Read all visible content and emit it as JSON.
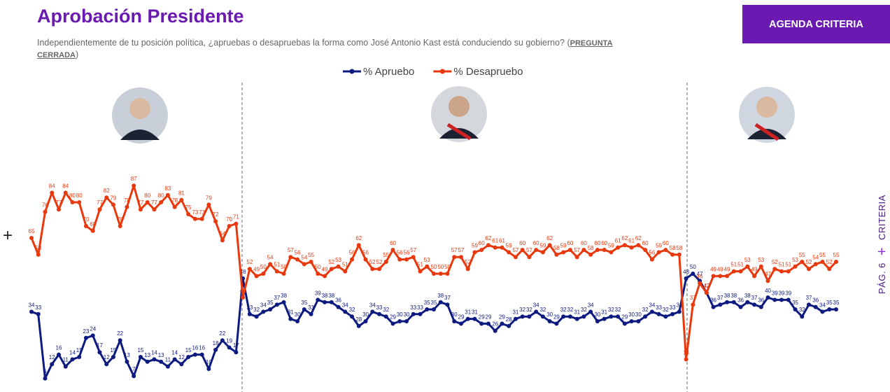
{
  "chart_data": {
    "type": "line",
    "title": "Aprobación Presidente",
    "subtitle": "Independientemente de tu posición política, ¿apruebas o desapruebas la forma como José Antonio Kast está conduciendo su gobierno?",
    "question_type": "PREGUNTA CERRADA",
    "button": "AGENDA CRITERIA",
    "page_label": "PÁG. 6",
    "brand": "CRITERIA",
    "ylim": [
      0,
      100
    ],
    "series": [
      {
        "name": "% Apruebo",
        "color": "#0d1a80",
        "values": [
          34,
          33,
          6,
          12,
          16,
          11,
          14,
          15,
          23,
          24,
          17,
          12,
          15,
          22,
          13,
          7,
          15,
          13,
          14,
          13,
          11,
          14,
          12,
          15,
          16,
          16,
          10,
          18,
          22,
          19,
          17,
          48,
          33,
          32,
          34,
          35,
          37,
          38,
          31,
          30,
          35,
          33,
          39,
          38,
          38,
          36,
          34,
          32,
          28,
          30,
          34,
          33,
          32,
          29,
          30,
          30,
          33,
          33,
          35,
          35,
          38,
          37,
          30,
          29,
          31,
          31,
          29,
          29,
          26,
          29,
          28,
          31,
          32,
          32,
          34,
          32,
          30,
          29,
          32,
          32,
          31,
          32,
          34,
          30,
          31,
          32,
          32,
          29,
          30,
          30,
          32,
          34,
          33,
          32,
          33,
          34,
          48,
          50,
          47,
          42,
          36,
          37,
          38,
          38,
          36,
          38,
          37,
          36,
          40,
          39,
          39,
          39,
          35,
          32,
          37,
          36,
          34,
          35,
          35
        ]
      },
      {
        "name": "% Desapruebo",
        "color": "#e8380d",
        "values": [
          65,
          58,
          76,
          84,
          77,
          84,
          80,
          80,
          70,
          68,
          77,
          82,
          79,
          70,
          78,
          87,
          77,
          80,
          77,
          80,
          83,
          78,
          81,
          75,
          73,
          73,
          79,
          72,
          64,
          70,
          71,
          40,
          52,
          49,
          50,
          54,
          51,
          50,
          57,
          56,
          54,
          55,
          50,
          49,
          52,
          53,
          51,
          56,
          62,
          56,
          52,
          52,
          55,
          60,
          56,
          56,
          57,
          51,
          53,
          50,
          50,
          50,
          57,
          57,
          52,
          59,
          60,
          62,
          61,
          61,
          59,
          57,
          60,
          57,
          60,
          59,
          62,
          58,
          59,
          60,
          57,
          60,
          58,
          60,
          60,
          59,
          61,
          62,
          61,
          62,
          60,
          56,
          59,
          60,
          58,
          58,
          14,
          37,
          46,
          42,
          49,
          49,
          49,
          51,
          51,
          53,
          49,
          53,
          47,
          52,
          51,
          51,
          53,
          55,
          52,
          54,
          55,
          52,
          55
        ]
      }
    ]
  }
}
